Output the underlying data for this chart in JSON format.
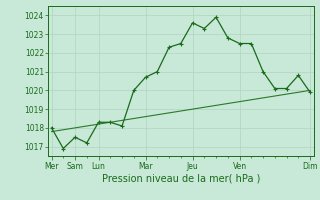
{
  "xlabel": "Pression niveau de la mer( hPa )",
  "background_color": "#c8e8d8",
  "grid_color": "#b0d4c0",
  "line_color1": "#1a6b1a",
  "line_color2": "#2a7a2a",
  "ylim": [
    1016.5,
    1024.5
  ],
  "yticks": [
    1017,
    1018,
    1019,
    1020,
    1021,
    1022,
    1023,
    1024
  ],
  "series1_x": [
    0,
    1,
    2,
    3,
    4,
    5,
    6,
    7,
    8,
    9,
    10,
    11,
    12,
    13,
    14,
    15,
    16,
    17,
    18,
    19,
    20,
    21,
    22
  ],
  "series1_y": [
    1018.0,
    1016.9,
    1017.5,
    1017.2,
    1018.3,
    1018.3,
    1018.1,
    1020.0,
    1020.7,
    1021.0,
    1022.3,
    1022.5,
    1023.6,
    1023.3,
    1023.9,
    1022.8,
    1022.5,
    1022.5,
    1021.0,
    1020.1,
    1020.1,
    1020.8,
    1019.9
  ],
  "series2_x": [
    0,
    22
  ],
  "series2_y": [
    1017.8,
    1020.0
  ],
  "major_x_positions": [
    0,
    2,
    4,
    8,
    12,
    16,
    22
  ],
  "major_x_labels": [
    "Mer",
    "Sam",
    "Lun",
    "Mar",
    "Jeu",
    "Ven",
    "Dim"
  ],
  "xlim": [
    -0.3,
    22.3
  ]
}
